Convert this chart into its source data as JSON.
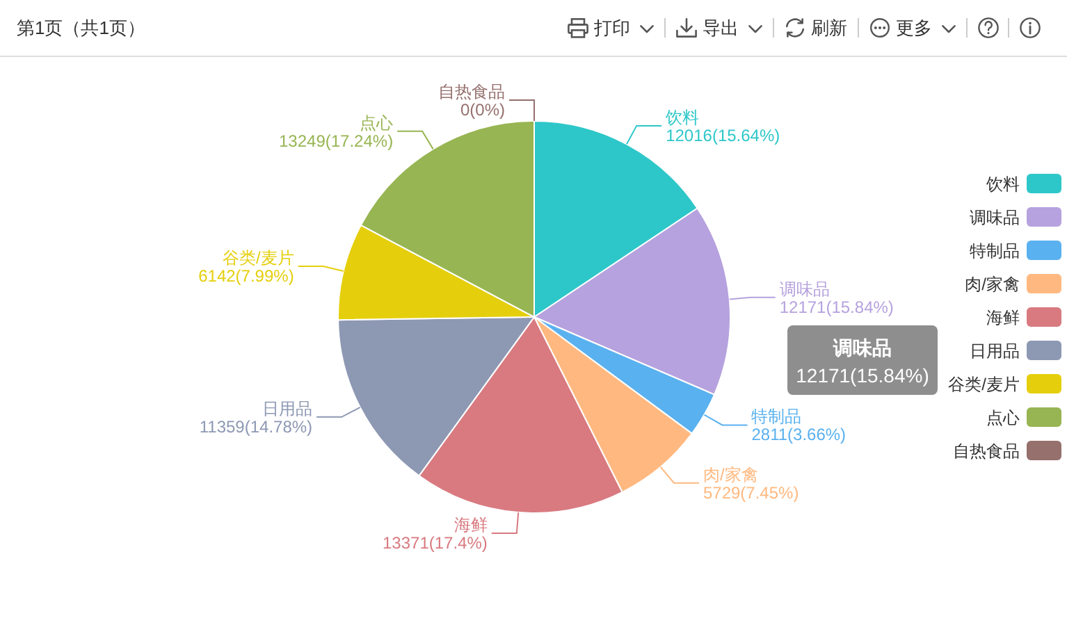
{
  "chart_data": {
    "type": "pie",
    "categories": [
      "饮料",
      "调味品",
      "特制品",
      "肉/家禽",
      "海鲜",
      "日用品",
      "谷类/麦片",
      "点心",
      "自热食品"
    ],
    "values": [
      12016,
      12171,
      2811,
      5729,
      13371,
      11359,
      6142,
      13249,
      0
    ],
    "colors": [
      "#2ec7c9",
      "#b6a2de",
      "#5ab1ef",
      "#ffb980",
      "#d87a80",
      "#8d98b3",
      "#e5cf0d",
      "#97b552",
      "#95706d"
    ],
    "value_labels": [
      "12016(15.64%)",
      "12171(15.84%)",
      "2811(3.66%)",
      "5729(7.45%)",
      "13371(17.4%)",
      "11359(14.78%)",
      "6142(7.99%)",
      "13249(17.24%)",
      "0(0%)"
    ],
    "legend": "right",
    "annotations": [
      "第1页（共1页）",
      "打印",
      "导出",
      "刷新",
      "更多",
      "调味品\n12171(15.84%)"
    ]
  }
}
